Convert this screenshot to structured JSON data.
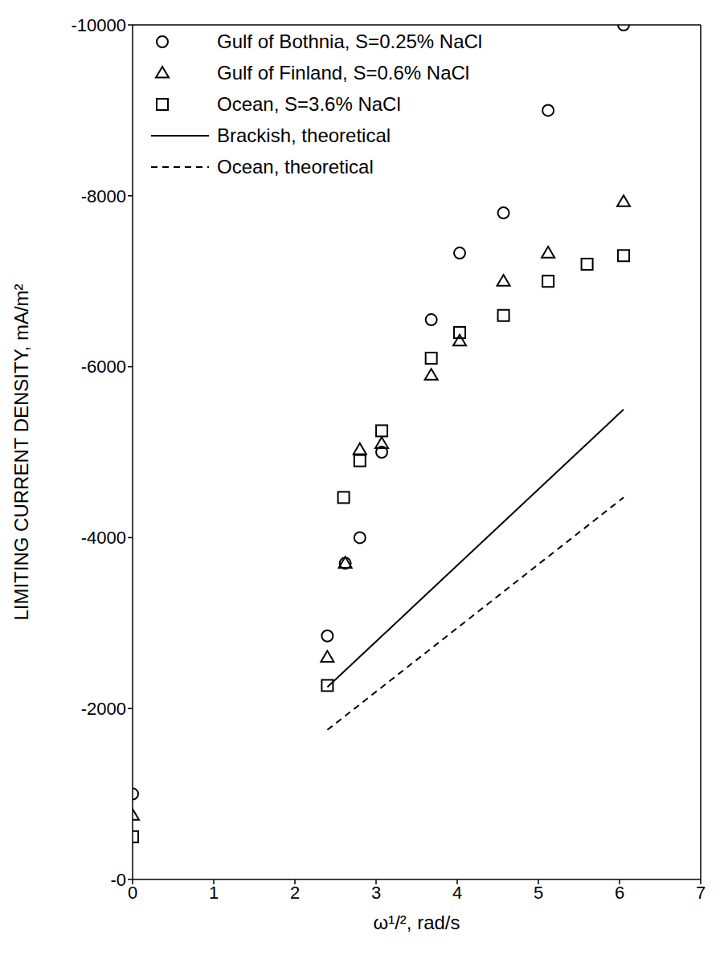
{
  "chart_data": {
    "type": "scatter",
    "x_label": "ω¹/², rad/s",
    "y_label": "LIMITING CURRENT DENSITY, mA/m²",
    "xlim": [
      0,
      7
    ],
    "xticks": [
      0,
      1,
      2,
      3,
      4,
      5,
      6,
      7
    ],
    "ylim": [
      0,
      -10000
    ],
    "yticks": [
      {
        "value": 0,
        "label": "-0"
      },
      -2000,
      -4000,
      -6000,
      -8000,
      -10000
    ],
    "grid": false,
    "legend": "upper left",
    "series": [
      {
        "name": "Gulf of Bothnia, S=0.25% NaCl",
        "type": "scatter",
        "marker": "circle",
        "color": "#000000",
        "x": [
          0,
          2.4,
          2.62,
          2.8,
          3.07,
          3.68,
          4.03,
          4.57,
          5.12,
          6.05
        ],
        "values": [
          -1000,
          -2850,
          -3700,
          -4000,
          -5000,
          -6550,
          -7330,
          -7800,
          -9000,
          -10000
        ]
      },
      {
        "name": "Gulf of Finland, S=0.6% NaCl",
        "type": "scatter",
        "marker": "triangle",
        "color": "#000000",
        "x": [
          0,
          2.4,
          2.62,
          2.8,
          3.07,
          3.68,
          4.03,
          4.57,
          5.12,
          6.05
        ],
        "values": [
          -750,
          -2600,
          -3700,
          -5030,
          -5100,
          -5900,
          -6300,
          -7000,
          -7330,
          -7930
        ]
      },
      {
        "name": "Ocean, S=3.6% NaCl",
        "type": "scatter",
        "marker": "square",
        "color": "#000000",
        "x": [
          0,
          2.4,
          2.6,
          2.8,
          3.07,
          3.68,
          4.03,
          4.57,
          5.12,
          5.6,
          6.05
        ],
        "values": [
          -500,
          -2270,
          -4470,
          -4900,
          -5250,
          -6100,
          -6400,
          -6600,
          -7000,
          -7200,
          -7300
        ]
      },
      {
        "name": "Brackish, theoretical",
        "type": "line",
        "line_style": "solid",
        "color": "#000000",
        "x": [
          2.4,
          6.05
        ],
        "values": [
          -2250,
          -5500
        ]
      },
      {
        "name": "Ocean, theoretical",
        "type": "line",
        "line_style": "dashed",
        "color": "#000000",
        "x": [
          2.4,
          6.05
        ],
        "values": [
          -1750,
          -4470
        ]
      }
    ]
  }
}
